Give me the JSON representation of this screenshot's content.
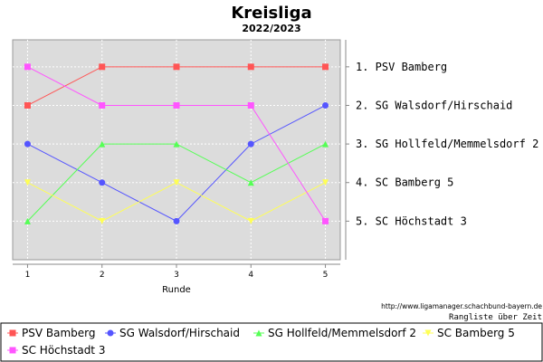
{
  "chart_data": {
    "type": "line",
    "title": "Kreisliga",
    "subtitle": "2022/2023",
    "xlabel": "Runde",
    "x": [
      1,
      2,
      3,
      4,
      5
    ],
    "ylim": [
      0.3,
      6
    ],
    "y_inverted": true,
    "grid": true,
    "right_labels": [
      "1. PSV Bamberg",
      "2. SG Walsdorf/Hirschaid",
      "3. SG Hollfeld/Memmelsdorf 2",
      "4. SC Bamberg 5",
      "5. SC Höchstadt 3"
    ],
    "series": [
      {
        "name": "PSV Bamberg",
        "values": [
          2,
          1,
          1,
          1,
          1
        ],
        "color": "#ff5555",
        "marker": "square"
      },
      {
        "name": "SG Walsdorf/Hirschaid",
        "values": [
          3,
          4,
          5,
          3,
          2
        ],
        "color": "#5555ff",
        "marker": "circle"
      },
      {
        "name": "SG Hollfeld/Memmelsdorf 2",
        "values": [
          5,
          3,
          3,
          4,
          3
        ],
        "color": "#55ff55",
        "marker": "triangle-up"
      },
      {
        "name": "SC Bamberg 5",
        "values": [
          4,
          5,
          4,
          5,
          4
        ],
        "color": "#ffff55",
        "marker": "triangle-down"
      },
      {
        "name": "SC Höchstadt 3",
        "values": [
          1,
          2,
          2,
          2,
          5
        ],
        "color": "#ff55ff",
        "marker": "square"
      }
    ],
    "legend_position": "bottom",
    "source": "http://www.ligamanager.schachbund-bayern.de",
    "caption": "Rangliste über Zeit"
  }
}
